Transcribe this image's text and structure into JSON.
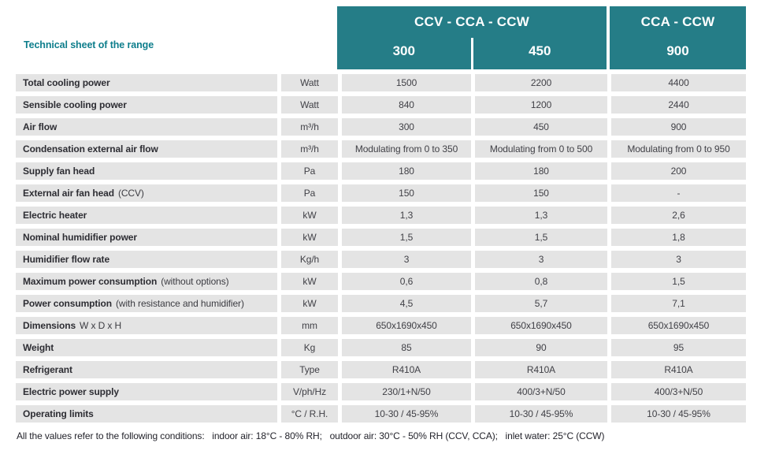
{
  "title": "Technical sheet of the range",
  "header": {
    "group1": {
      "models": "CCV - CCA - CCW",
      "sizes": [
        "300",
        "450"
      ]
    },
    "group2": {
      "models": "CCA - CCW",
      "sizes": [
        "900"
      ]
    }
  },
  "rows": [
    {
      "label": "Total cooling power",
      "note": "",
      "unit": "Watt",
      "values": [
        "1500",
        "2200",
        "4400"
      ]
    },
    {
      "label": "Sensible cooling power",
      "note": "",
      "unit": "Watt",
      "values": [
        "840",
        "1200",
        "2440"
      ]
    },
    {
      "label": "Air flow",
      "note": "",
      "unit": "m³/h",
      "values": [
        "300",
        "450",
        "900"
      ]
    },
    {
      "label": "Condensation external air flow",
      "note": "",
      "unit": "m³/h",
      "values": [
        "Modulating from 0 to 350",
        "Modulating from 0 to 500",
        "Modulating from 0 to 950"
      ]
    },
    {
      "label": "Supply fan head",
      "note": "",
      "unit": "Pa",
      "values": [
        "180",
        "180",
        "200"
      ]
    },
    {
      "label": "External air fan head",
      "note": "(CCV)",
      "unit": "Pa",
      "values": [
        "150",
        "150",
        "-"
      ]
    },
    {
      "label": "Electric heater",
      "note": "",
      "unit": "kW",
      "values": [
        "1,3",
        "1,3",
        "2,6"
      ]
    },
    {
      "label": "Nominal humidifier power",
      "note": "",
      "unit": "kW",
      "values": [
        "1,5",
        "1,5",
        "1,8"
      ]
    },
    {
      "label": "Humidifier flow rate",
      "note": "",
      "unit": "Kg/h",
      "values": [
        "3",
        "3",
        "3"
      ]
    },
    {
      "label": "Maximum power consumption",
      "note": "(without options)",
      "unit": "kW",
      "values": [
        "0,6",
        "0,8",
        "1,5"
      ]
    },
    {
      "label": "Power consumption",
      "note": "(with resistance and humidifier)",
      "unit": "kW",
      "values": [
        "4,5",
        "5,7",
        "7,1"
      ]
    },
    {
      "label": "Dimensions",
      "note": "W x D x H",
      "unit": "mm",
      "values": [
        "650x1690x450",
        "650x1690x450",
        "650x1690x450"
      ]
    },
    {
      "label": "Weight",
      "note": "",
      "unit": "Kg",
      "values": [
        "85",
        "90",
        "95"
      ]
    },
    {
      "label": "Refrigerant",
      "note": "",
      "unit": "Type",
      "values": [
        "R410A",
        "R410A",
        "R410A"
      ]
    },
    {
      "label": "Electric power supply",
      "note": "",
      "unit": "V/ph/Hz",
      "values": [
        "230/1+N/50",
        "400/3+N/50",
        "400/3+N/50"
      ]
    },
    {
      "label": "Operating limits",
      "note": "",
      "unit": "°C / R.H.",
      "values": [
        "10-30 / 45-95%",
        "10-30 / 45-95%",
        "10-30 / 45-95%"
      ]
    }
  ],
  "footer": "All the values refer to the following conditions:   indoor air: 18°C - 80% RH;   outdoor air: 30°C - 50% RH (CCV, CCA);   inlet water: 25°C (CCW)",
  "colors": {
    "header_teal": "#257d87",
    "title_teal": "#0e7e8c",
    "row_bg": "#e4e4e4",
    "label_text": "#2d2d33",
    "value_text": "#414147"
  }
}
